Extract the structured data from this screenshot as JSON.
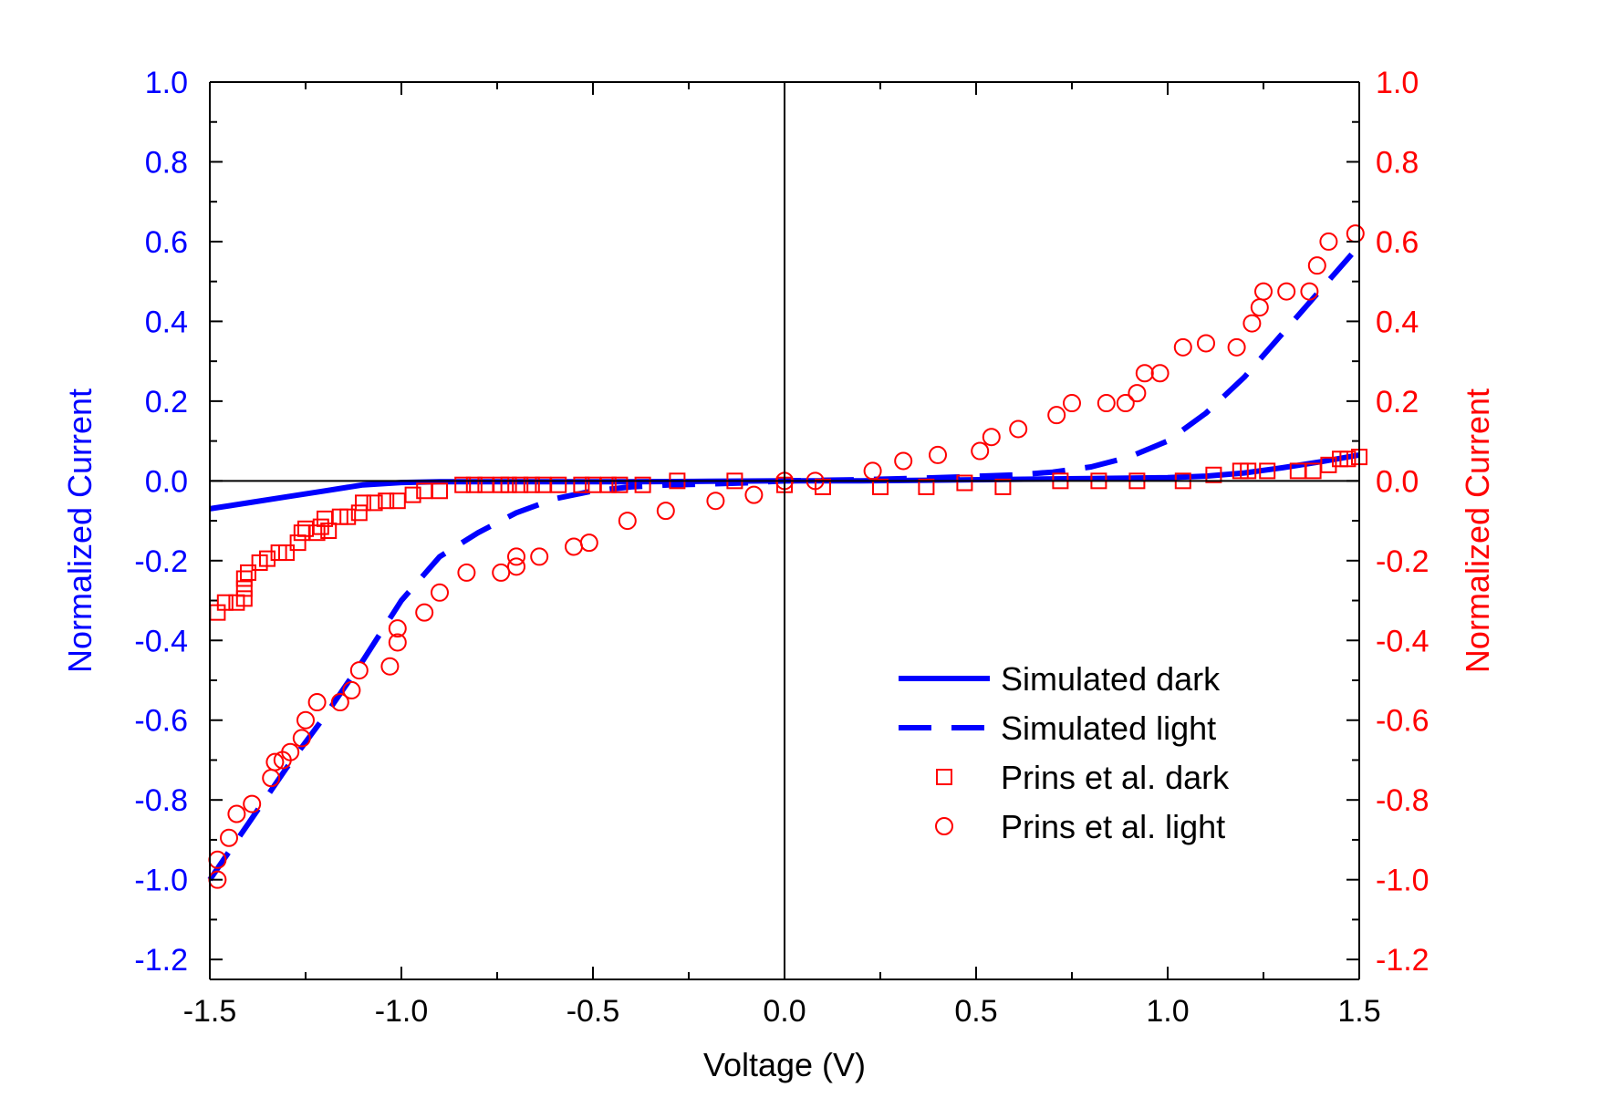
{
  "chart_data": {
    "type": "scatter",
    "title": "",
    "xlabel": "Voltage (V)",
    "ylabel_left": "Normalized Current",
    "ylabel_right": "Normalized Current",
    "xlim": [
      -1.5,
      1.5
    ],
    "ylim": [
      -1.25,
      1.0
    ],
    "xticks": [
      -1.5,
      -1.0,
      -0.5,
      0.0,
      0.5,
      1.0,
      1.5
    ],
    "xtick_labels": [
      "-1.5",
      "-1.0",
      "-0.5",
      "0.0",
      "0.5",
      "1.0",
      "1.5"
    ],
    "yticks": [
      1.0,
      0.8,
      0.6,
      0.4,
      0.2,
      0.0,
      -0.2,
      -0.4,
      -0.6,
      -0.8,
      -1.0,
      -1.2
    ],
    "ytick_labels": [
      "1.0",
      "0.8",
      "0.6",
      "0.4",
      "0.2",
      "0.0",
      "-0.2",
      "-0.4",
      "-0.6",
      "-0.8",
      "-1.0",
      "-1.2"
    ],
    "grid": false,
    "legend_position": "bottom-right",
    "colors": {
      "left_axis": "#0000ff",
      "right_axis": "#ff0000",
      "sim": "#0000ff",
      "exp": "#ff0000",
      "frame": "#000000"
    },
    "series": [
      {
        "name": "Simulated dark",
        "kind": "line",
        "style": "solid",
        "color": "#0000ff",
        "x": [
          -1.5,
          -1.4,
          -1.3,
          -1.2,
          -1.1,
          -1.0,
          -0.9,
          -0.8,
          -0.6,
          -0.4,
          -0.2,
          0.0,
          0.2,
          0.4,
          0.6,
          0.8,
          1.0,
          1.1,
          1.2,
          1.3,
          1.4,
          1.5
        ],
        "y": [
          -0.07,
          -0.055,
          -0.04,
          -0.025,
          -0.01,
          -0.004,
          -0.002,
          -0.002,
          -0.002,
          -0.002,
          -0.001,
          0.0,
          0.0,
          0.002,
          0.004,
          0.006,
          0.008,
          0.012,
          0.02,
          0.033,
          0.048,
          0.065
        ]
      },
      {
        "name": "Simulated light",
        "kind": "line",
        "style": "dashed",
        "color": "#0000ff",
        "x": [
          -1.5,
          -1.4,
          -1.3,
          -1.2,
          -1.1,
          -1.0,
          -0.9,
          -0.8,
          -0.7,
          -0.6,
          -0.5,
          -0.4,
          -0.3,
          -0.2,
          -0.1,
          0.0,
          0.2,
          0.4,
          0.6,
          0.7,
          0.8,
          0.9,
          1.0,
          1.1,
          1.2,
          1.3,
          1.4,
          1.5
        ],
        "y": [
          -1.0,
          -0.86,
          -0.72,
          -0.59,
          -0.45,
          -0.3,
          -0.19,
          -0.13,
          -0.08,
          -0.045,
          -0.025,
          -0.015,
          -0.01,
          -0.008,
          -0.005,
          0.0,
          0.003,
          0.008,
          0.015,
          0.022,
          0.035,
          0.06,
          0.1,
          0.17,
          0.26,
          0.37,
          0.48,
          0.59
        ]
      },
      {
        "name": "Prins et al. dark",
        "kind": "scatter",
        "marker": "square",
        "color": "#ff0000",
        "x": [
          -1.48,
          -1.46,
          -1.43,
          -1.41,
          -1.41,
          -1.41,
          -1.4,
          -1.37,
          -1.35,
          -1.32,
          -1.3,
          -1.27,
          -1.26,
          -1.25,
          -1.22,
          -1.21,
          -1.2,
          -1.19,
          -1.16,
          -1.14,
          -1.11,
          -1.1,
          -1.07,
          -1.04,
          -1.01,
          -0.97,
          -0.94,
          -0.9,
          -0.84,
          -0.81,
          -0.78,
          -0.74,
          -0.72,
          -0.69,
          -0.66,
          -0.63,
          -0.59,
          -0.53,
          -0.5,
          -0.46,
          -0.43,
          -0.37,
          -0.28,
          -0.13,
          0.0,
          0.1,
          0.25,
          0.37,
          0.47,
          0.57,
          0.72,
          0.82,
          0.92,
          1.04,
          1.12,
          1.19,
          1.21,
          1.26,
          1.34,
          1.38,
          1.42,
          1.45,
          1.47,
          1.5
        ],
        "y": [
          -0.33,
          -0.305,
          -0.305,
          -0.295,
          -0.27,
          -0.245,
          -0.23,
          -0.205,
          -0.195,
          -0.18,
          -0.18,
          -0.155,
          -0.13,
          -0.12,
          -0.13,
          -0.115,
          -0.095,
          -0.125,
          -0.09,
          -0.09,
          -0.08,
          -0.055,
          -0.055,
          -0.05,
          -0.05,
          -0.035,
          -0.025,
          -0.025,
          -0.01,
          -0.01,
          -0.01,
          -0.01,
          -0.01,
          -0.01,
          -0.01,
          -0.01,
          -0.01,
          -0.01,
          -0.01,
          -0.01,
          -0.01,
          -0.01,
          0.0,
          0.0,
          -0.01,
          -0.015,
          -0.015,
          -0.015,
          -0.005,
          -0.015,
          0.0,
          0.0,
          0.0,
          0.0,
          0.015,
          0.025,
          0.025,
          0.025,
          0.025,
          0.025,
          0.04,
          0.055,
          0.055,
          0.06
        ]
      },
      {
        "name": "Prins et al. light",
        "kind": "scatter",
        "marker": "circle",
        "color": "#ff0000",
        "x": [
          -1.48,
          -1.48,
          -1.45,
          -1.43,
          -1.39,
          -1.34,
          -1.33,
          -1.31,
          -1.29,
          -1.26,
          -1.25,
          -1.22,
          -1.16,
          -1.13,
          -1.11,
          -1.03,
          -1.01,
          -1.01,
          -0.94,
          -0.9,
          -0.83,
          -0.74,
          -0.7,
          -0.7,
          -0.64,
          -0.55,
          -0.51,
          -0.41,
          -0.31,
          -0.18,
          -0.08,
          0.0,
          0.08,
          0.23,
          0.31,
          0.4,
          0.51,
          0.54,
          0.61,
          0.71,
          0.75,
          0.84,
          0.89,
          0.92,
          0.94,
          0.98,
          1.04,
          1.1,
          1.18,
          1.22,
          1.24,
          1.25,
          1.31,
          1.37,
          1.39,
          1.42,
          1.49
        ],
        "y": [
          -1.0,
          -0.95,
          -0.895,
          -0.835,
          -0.81,
          -0.745,
          -0.705,
          -0.7,
          -0.68,
          -0.645,
          -0.6,
          -0.555,
          -0.555,
          -0.525,
          -0.475,
          -0.465,
          -0.405,
          -0.37,
          -0.33,
          -0.28,
          -0.23,
          -0.23,
          -0.215,
          -0.19,
          -0.19,
          -0.165,
          -0.155,
          -0.1,
          -0.075,
          -0.05,
          -0.035,
          0.0,
          0.0,
          0.025,
          0.05,
          0.065,
          0.075,
          0.11,
          0.13,
          0.165,
          0.195,
          0.195,
          0.195,
          0.22,
          0.27,
          0.27,
          0.335,
          0.345,
          0.335,
          0.395,
          0.435,
          0.475,
          0.475,
          0.475,
          0.54,
          0.6,
          0.62
        ]
      }
    ]
  }
}
